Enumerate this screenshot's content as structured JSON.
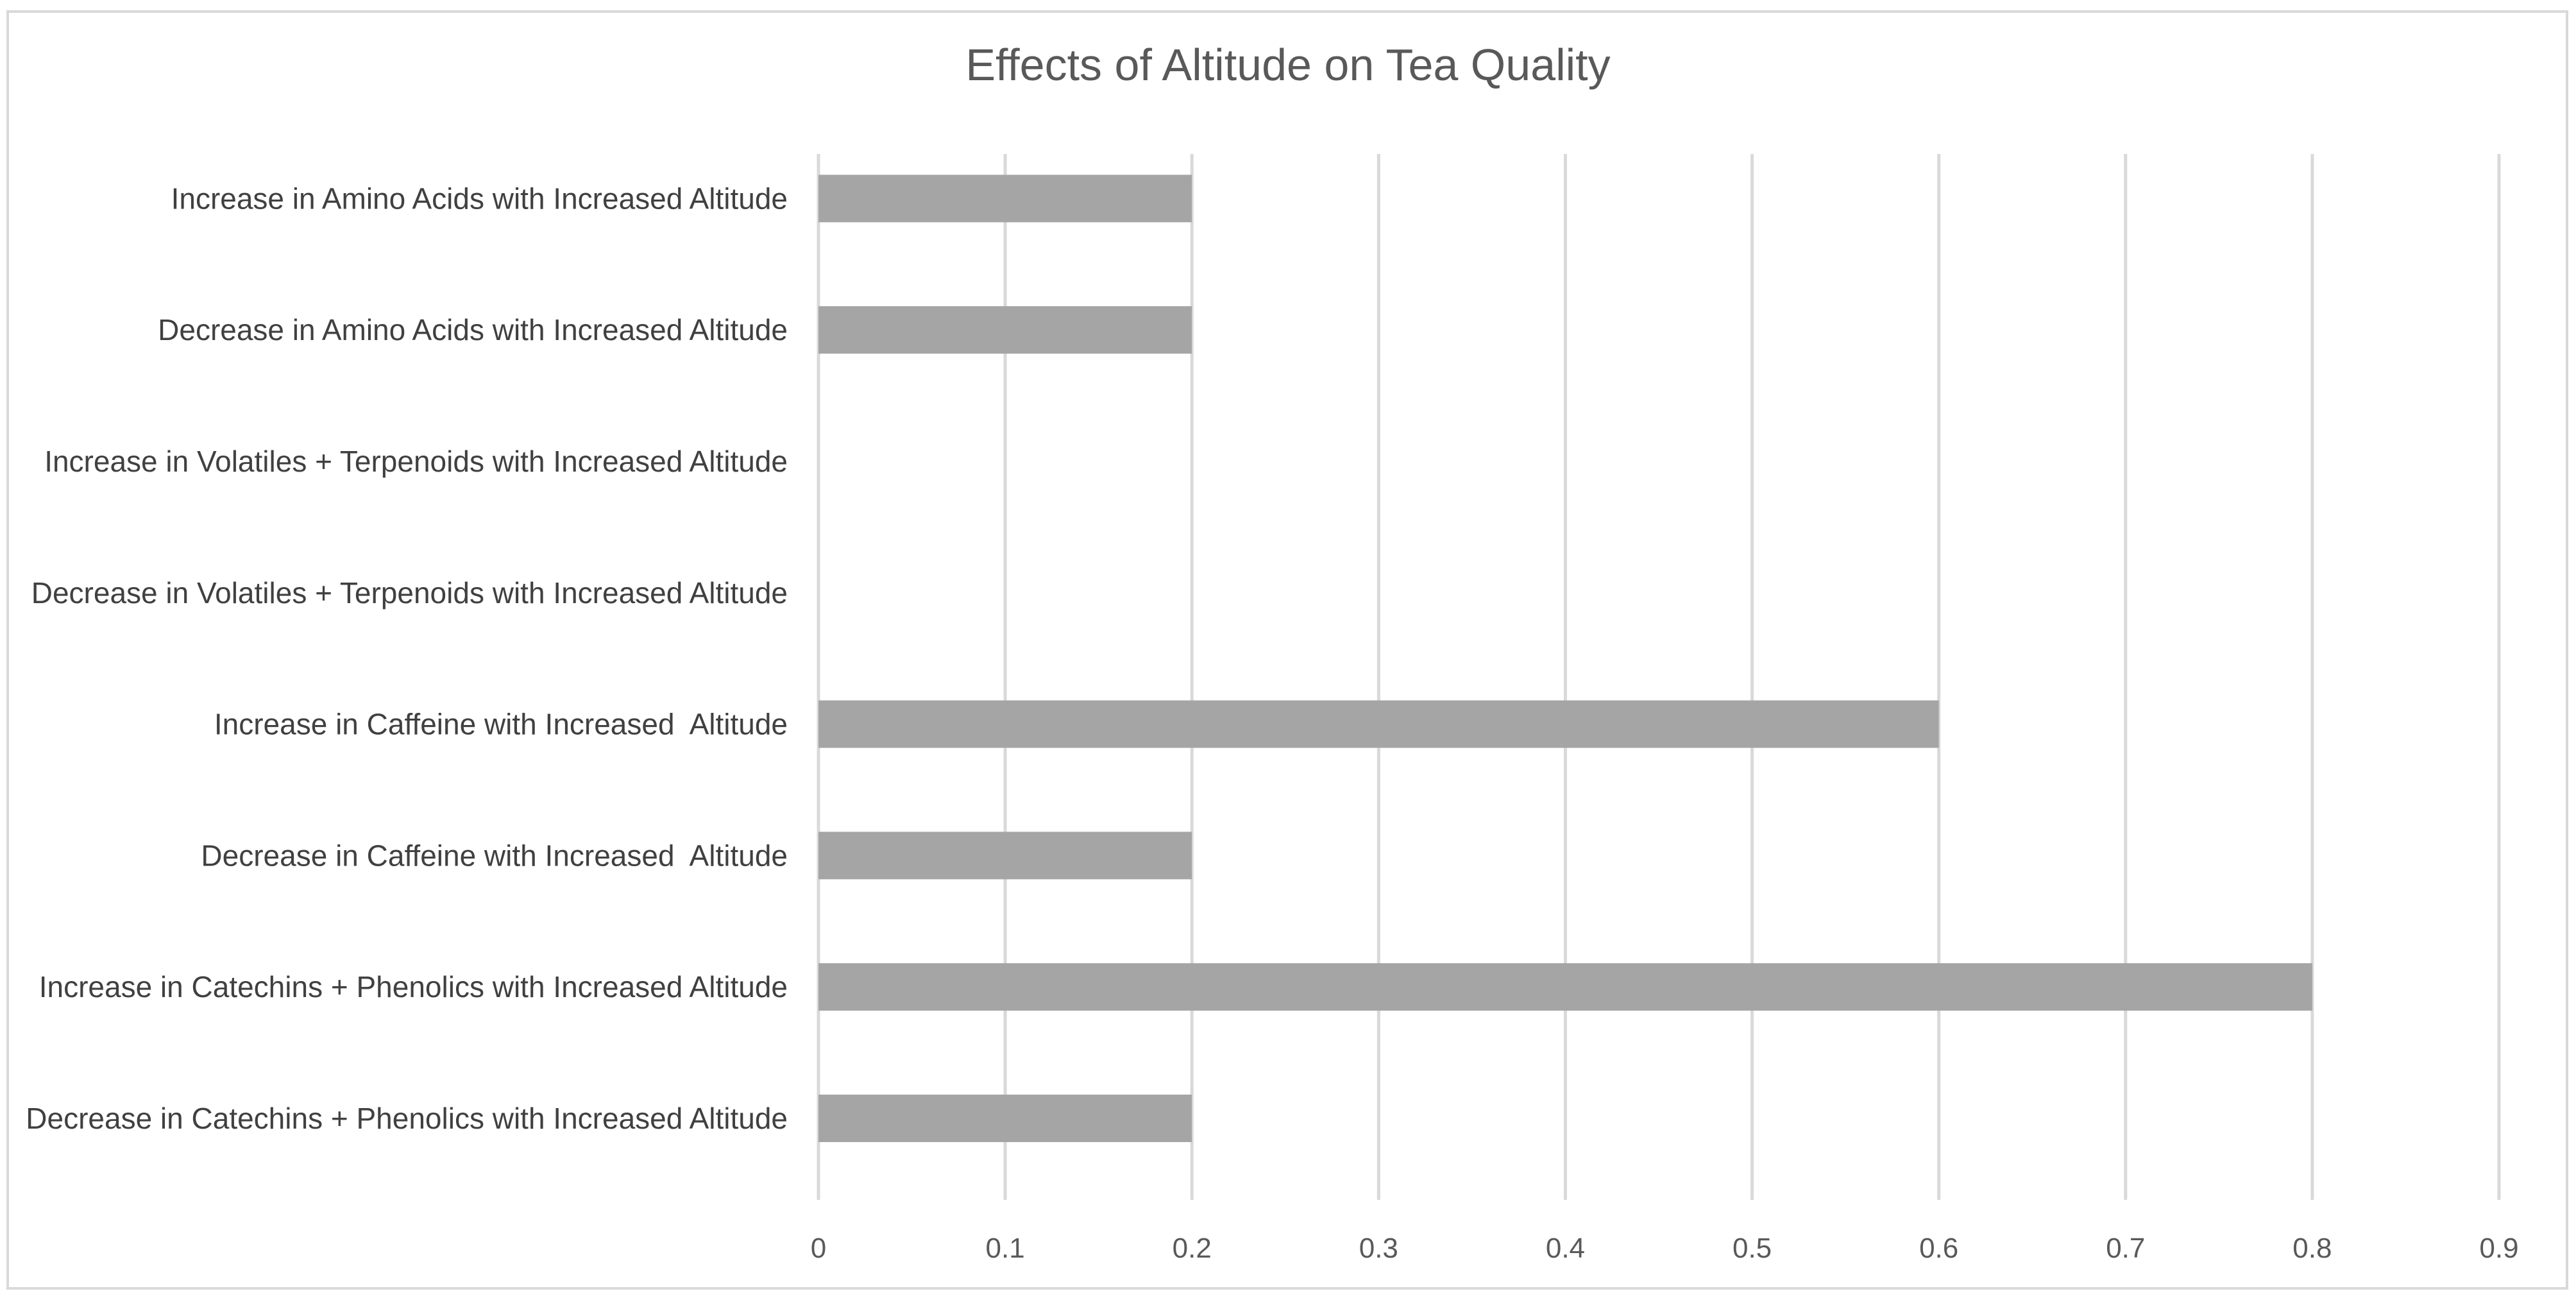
{
  "chart_data": {
    "type": "bar",
    "orientation": "horizontal",
    "title": "Effects of Altitude on Tea Quality",
    "xlabel": "",
    "ylabel": "",
    "categories": [
      "Increase in Amino Acids with Increased Altitude",
      "Decrease in Amino Acids with Increased Altitude",
      "Increase in Volatiles + Terpenoids with Increased Altitude",
      "Decrease in Volatiles + Terpenoids with Increased Altitude",
      "Increase in Caffeine with Increased  Altitude",
      "Decrease in Caffeine with Increased  Altitude",
      "Increase in Catechins + Phenolics with Increased Altitude",
      "Decrease in Catechins + Phenolics with Increased Altitude"
    ],
    "values": [
      0.2,
      0.2,
      0,
      0,
      0.6,
      0.2,
      0.8,
      0.2
    ],
    "xlim": [
      0,
      0.9
    ],
    "xticks": [
      "0",
      "0.1",
      "0.2",
      "0.3",
      "0.4",
      "0.5",
      "0.6",
      "0.7",
      "0.8",
      "0.9"
    ],
    "grid": true,
    "legend": "none",
    "bar_color": "#a5a5a5",
    "grid_color": "#d9d9d9"
  }
}
